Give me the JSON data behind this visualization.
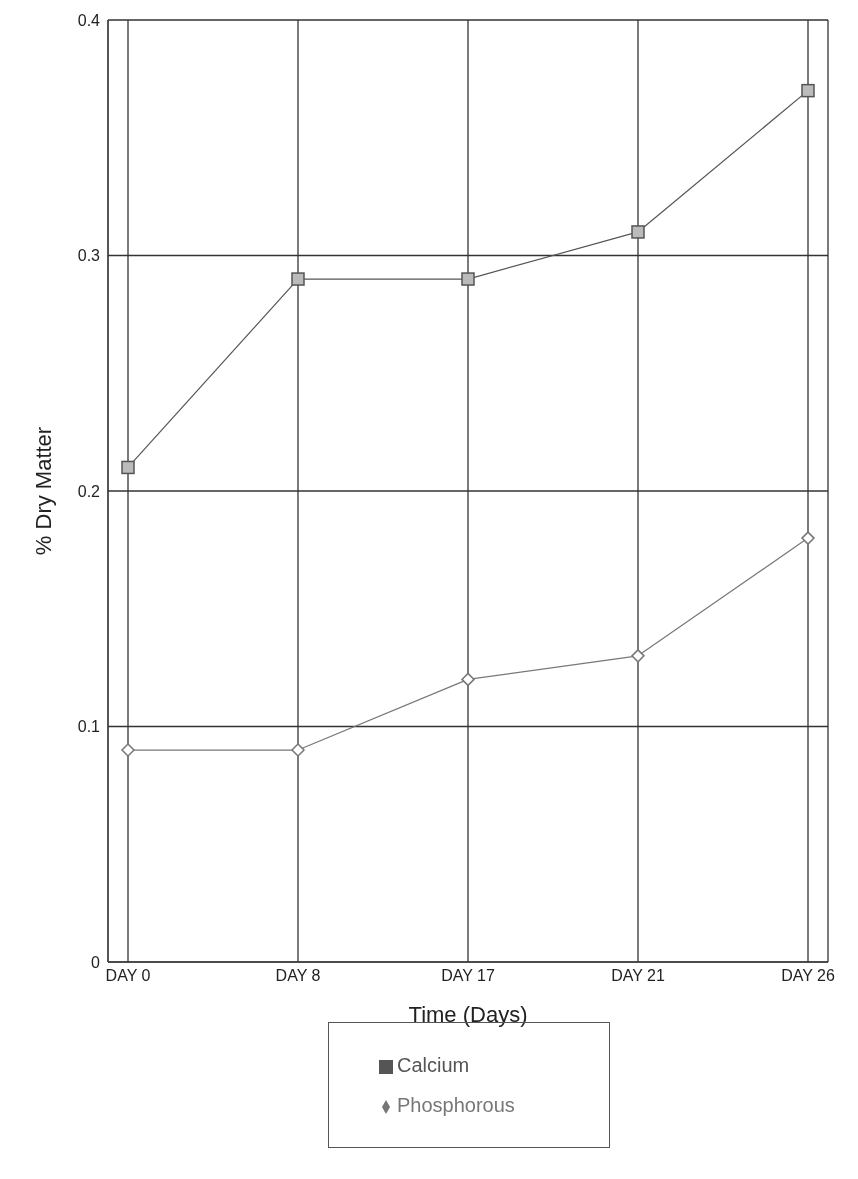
{
  "chart_data": {
    "type": "line",
    "xlabel": "Time (Days)",
    "ylabel": "% Dry Matter",
    "categories": [
      "DAY 0",
      "DAY 8",
      "DAY 17",
      "DAY 21",
      "DAY 26"
    ],
    "series": [
      {
        "name": "Calcium",
        "color": "#555555",
        "marker": "square",
        "values": [
          0.21,
          0.29,
          0.29,
          0.31,
          0.37
        ]
      },
      {
        "name": "Phosphorous",
        "color": "#777777",
        "marker": "diamond",
        "values": [
          0.09,
          0.09,
          0.12,
          0.13,
          0.18
        ]
      }
    ],
    "ylim": [
      0,
      0.4
    ],
    "yticks": [
      0,
      0.1,
      0.2,
      0.3,
      0.4
    ],
    "grid": true,
    "legend": "bottom",
    "line_style": "solid"
  }
}
